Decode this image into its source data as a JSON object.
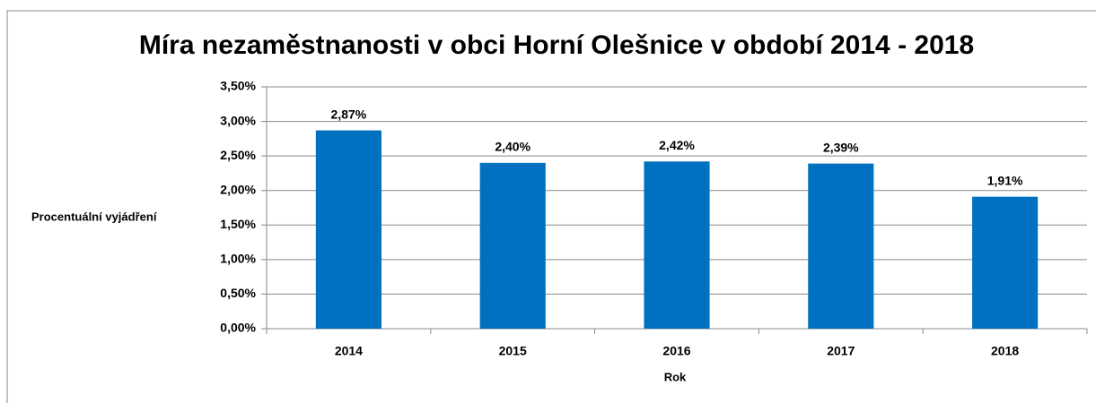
{
  "chart_data": {
    "type": "bar",
    "title": "Míra nezaměstnanosti v obci Horní Olešnice v období 2014 - 2018",
    "x_label": "Rok",
    "y_label": "Procentuální vyjádření",
    "categories": [
      "2014",
      "2015",
      "2016",
      "2017",
      "2018"
    ],
    "values": [
      2.87,
      2.4,
      2.42,
      2.39,
      1.91
    ],
    "value_labels": [
      "2,87%",
      "2,40%",
      "2,42%",
      "2,39%",
      "1,91%"
    ],
    "color": "#0070c0",
    "ylim": [
      0,
      3.5
    ],
    "yticks": [
      {
        "value": 0,
        "label": "0,00%"
      },
      {
        "value": 0.5,
        "label": "0,50%"
      },
      {
        "value": 1,
        "label": "1,00%"
      },
      {
        "value": 1.5,
        "label": "1,50%"
      },
      {
        "value": 2,
        "label": "2,00%"
      },
      {
        "value": 2.5,
        "label": "2,50%"
      },
      {
        "value": 3,
        "label": "3,00%"
      },
      {
        "value": 3.5,
        "label": "3,50%"
      }
    ],
    "grid": true
  }
}
